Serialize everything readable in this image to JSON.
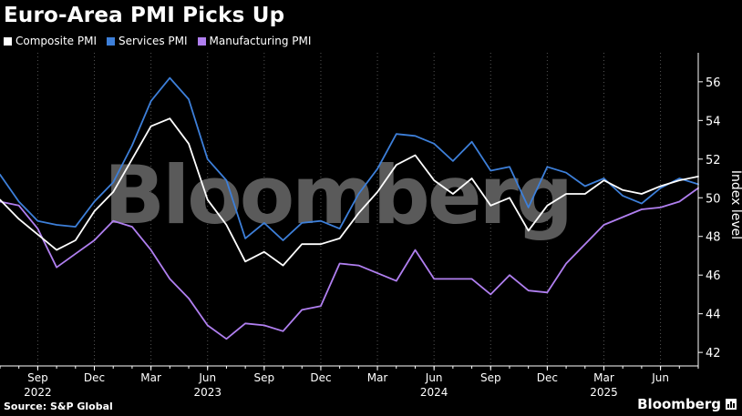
{
  "title": "Euro-Area PMI Picks Up",
  "source": "Source: S&P Global",
  "brand": "Bloomberg",
  "watermark": "Bloomberg",
  "colors": {
    "background": "#000000",
    "composite": "#ffffff",
    "services": "#3d7fd9",
    "manufacturing": "#b07ff0",
    "axis": "#ffffff",
    "grid": "#555555",
    "watermark": "#5a5a5a"
  },
  "chart_data": {
    "type": "line",
    "ylabel": "Index level",
    "ylim": [
      41.3,
      57.5
    ],
    "yticks": [
      42,
      44,
      46,
      48,
      50,
      52,
      54,
      56
    ],
    "grid": "vertical dashed at month labels",
    "legend_position": "top-left",
    "x": [
      "2022-07",
      "2022-08",
      "2022-09",
      "2022-10",
      "2022-11",
      "2022-12",
      "2023-01",
      "2023-02",
      "2023-03",
      "2023-04",
      "2023-05",
      "2023-06",
      "2023-07",
      "2023-08",
      "2023-09",
      "2023-10",
      "2023-11",
      "2023-12",
      "2024-01",
      "2024-02",
      "2024-03",
      "2024-04",
      "2024-05",
      "2024-06",
      "2024-07",
      "2024-08",
      "2024-09",
      "2024-10",
      "2024-11",
      "2024-12",
      "2025-01",
      "2025-02",
      "2025-03",
      "2025-04",
      "2025-05",
      "2025-06",
      "2025-07",
      "2025-08"
    ],
    "x_tick_labels": [
      {
        "month": "Sep",
        "year": "2022"
      },
      {
        "month": "Dec",
        "year": ""
      },
      {
        "month": "Mar",
        "year": ""
      },
      {
        "month": "Jun",
        "year": "2023"
      },
      {
        "month": "Sep",
        "year": ""
      },
      {
        "month": "Dec",
        "year": ""
      },
      {
        "month": "Mar",
        "year": ""
      },
      {
        "month": "Jun",
        "year": "2024"
      },
      {
        "month": "Sep",
        "year": ""
      },
      {
        "month": "Dec",
        "year": ""
      },
      {
        "month": "Mar",
        "year": "2025"
      },
      {
        "month": "Jun",
        "year": ""
      }
    ],
    "series": [
      {
        "name": "Composite PMI",
        "values": [
          49.9,
          48.9,
          48.1,
          47.3,
          47.8,
          49.3,
          50.3,
          52.0,
          53.7,
          54.1,
          52.8,
          49.9,
          48.6,
          46.7,
          47.2,
          46.5,
          47.6,
          47.6,
          47.9,
          49.2,
          50.3,
          51.7,
          52.2,
          50.9,
          50.2,
          51.0,
          49.6,
          50.0,
          48.3,
          49.6,
          50.2,
          50.2,
          50.9,
          50.4,
          50.2,
          50.6,
          50.9,
          51.1
        ]
      },
      {
        "name": "Services PMI",
        "values": [
          51.2,
          49.8,
          48.8,
          48.6,
          48.5,
          49.8,
          50.8,
          52.7,
          55.0,
          56.2,
          55.1,
          52.0,
          50.9,
          47.9,
          48.7,
          47.8,
          48.7,
          48.8,
          48.4,
          50.2,
          51.5,
          53.3,
          53.2,
          52.8,
          51.9,
          52.9,
          51.4,
          51.6,
          49.5,
          51.6,
          51.3,
          50.6,
          51.0,
          50.1,
          49.7,
          50.5,
          51.0,
          50.7
        ]
      },
      {
        "name": "Manufacturing PMI",
        "values": [
          49.8,
          49.6,
          48.4,
          46.4,
          47.1,
          47.8,
          48.8,
          48.5,
          47.3,
          45.8,
          44.8,
          43.4,
          42.7,
          43.5,
          43.4,
          43.1,
          44.2,
          44.4,
          46.6,
          46.5,
          46.1,
          45.7,
          47.3,
          45.8,
          45.8,
          45.8,
          45.0,
          46.0,
          45.2,
          45.1,
          46.6,
          47.6,
          48.6,
          49.0,
          49.4,
          49.5,
          49.8,
          50.5
        ]
      }
    ]
  }
}
